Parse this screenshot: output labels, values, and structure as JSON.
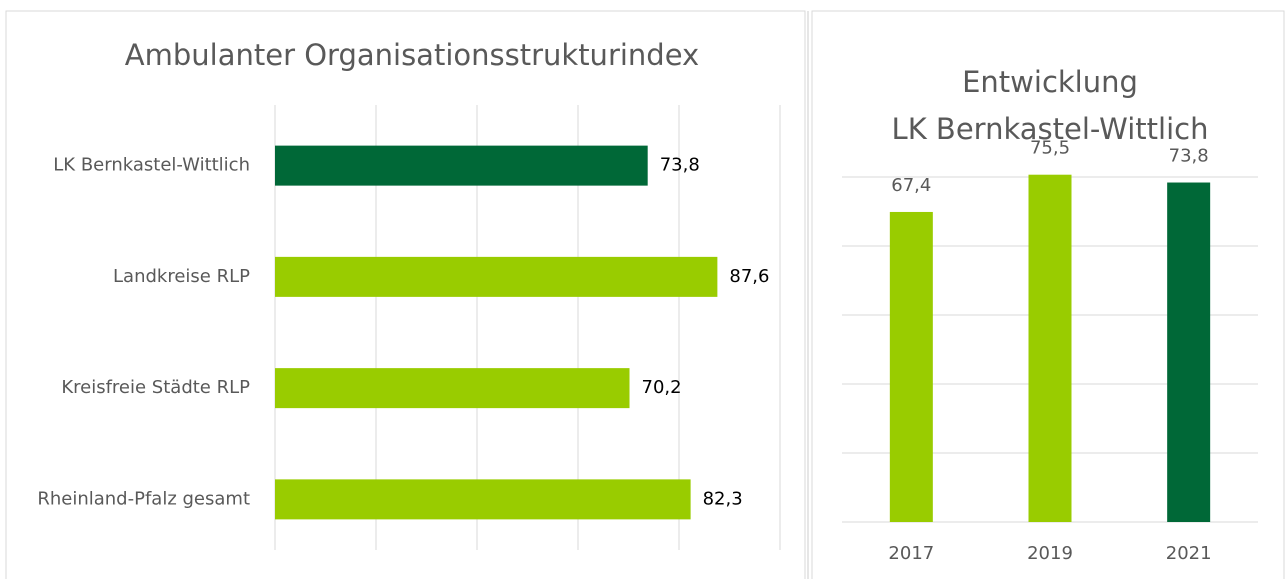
{
  "chart_data": [
    {
      "type": "hbar",
      "title": "Ambulanter Organisationsstrukturindex",
      "categories": [
        "LK Bernkastel-Wittlich",
        "Landkreise RLP",
        "Kreisfreie Städte RLP",
        "Rheinland-Pfalz gesamt"
      ],
      "values": [
        73.8,
        87.6,
        70.2,
        82.3
      ],
      "value_labels": [
        "73,8",
        "87,6",
        "70,2",
        "82,3"
      ],
      "colors": [
        "#006837",
        "#99cc00",
        "#99cc00",
        "#99cc00"
      ],
      "xlim": [
        0,
        100
      ],
      "xticks": [
        0,
        20,
        40,
        60,
        80,
        100
      ],
      "grid": true
    },
    {
      "type": "bar",
      "title": [
        "Entwicklung",
        "LK Bernkastel-Wittlich"
      ],
      "categories": [
        "2017",
        "2019",
        "2021"
      ],
      "values": [
        67.4,
        75.5,
        73.8
      ],
      "value_labels": [
        "67,4",
        "75,5",
        "73,8"
      ],
      "colors": [
        "#99cc00",
        "#99cc00",
        "#006837"
      ],
      "ylim": [
        0,
        75
      ],
      "yticks": [
        0,
        15,
        30,
        45,
        60,
        75
      ],
      "grid": true
    }
  ]
}
